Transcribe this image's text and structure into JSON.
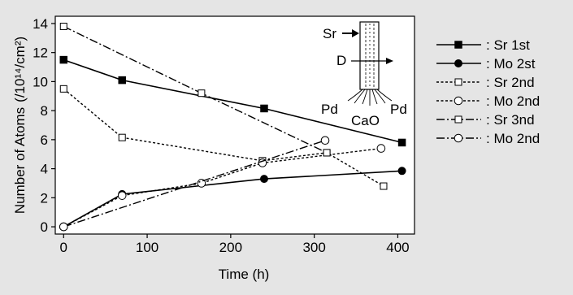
{
  "chart_data": {
    "type": "line",
    "xlabel": "Time (h)",
    "ylabel": "Number of Atoms",
    "ylabel_unit": "(/10¹⁴/cm²)",
    "xlim": [
      -10,
      420
    ],
    "ylim": [
      -0.5,
      14.5
    ],
    "xticks": [
      0,
      100,
      200,
      300,
      400
    ],
    "yticks": [
      0,
      2,
      4,
      6,
      8,
      10,
      12,
      14
    ],
    "grid": false,
    "legend_position": "right",
    "series": [
      {
        "name": ": Sr 1st",
        "marker": "square-filled",
        "line": "solid",
        "x": [
          0,
          70,
          240,
          405
        ],
        "y": [
          11.5,
          10.1,
          8.15,
          5.8
        ]
      },
      {
        "name": ": Mo 2st",
        "marker": "circle-filled",
        "line": "solid",
        "x": [
          0,
          70,
          240,
          405
        ],
        "y": [
          0.0,
          2.25,
          3.3,
          3.85
        ]
      },
      {
        "name": ": Sr 2nd",
        "marker": "square-open",
        "line": "dotted",
        "x": [
          0,
          70,
          238,
          315,
          383
        ],
        "y": [
          9.5,
          6.15,
          4.55,
          5.1,
          2.8
        ]
      },
      {
        "name": ": Mo 2nd",
        "marker": "circle-open",
        "line": "dotted",
        "x": [
          0,
          70,
          165,
          238,
          380
        ],
        "y": [
          0.0,
          2.15,
          3.0,
          4.4,
          5.4
        ]
      },
      {
        "name": ": Sr 3nd",
        "marker": "square-open",
        "line": "dashdot",
        "x": [
          0,
          165,
          315
        ],
        "y": [
          13.8,
          9.2,
          5.1
        ]
      },
      {
        "name": ": Mo 2nd",
        "marker": "circle-open",
        "line": "dashdot",
        "x": [
          0,
          313
        ],
        "y": [
          0.0,
          5.95
        ]
      }
    ],
    "inset": {
      "labels": [
        "Sr",
        "D",
        "Pd",
        "CaO",
        "Pd"
      ]
    }
  }
}
